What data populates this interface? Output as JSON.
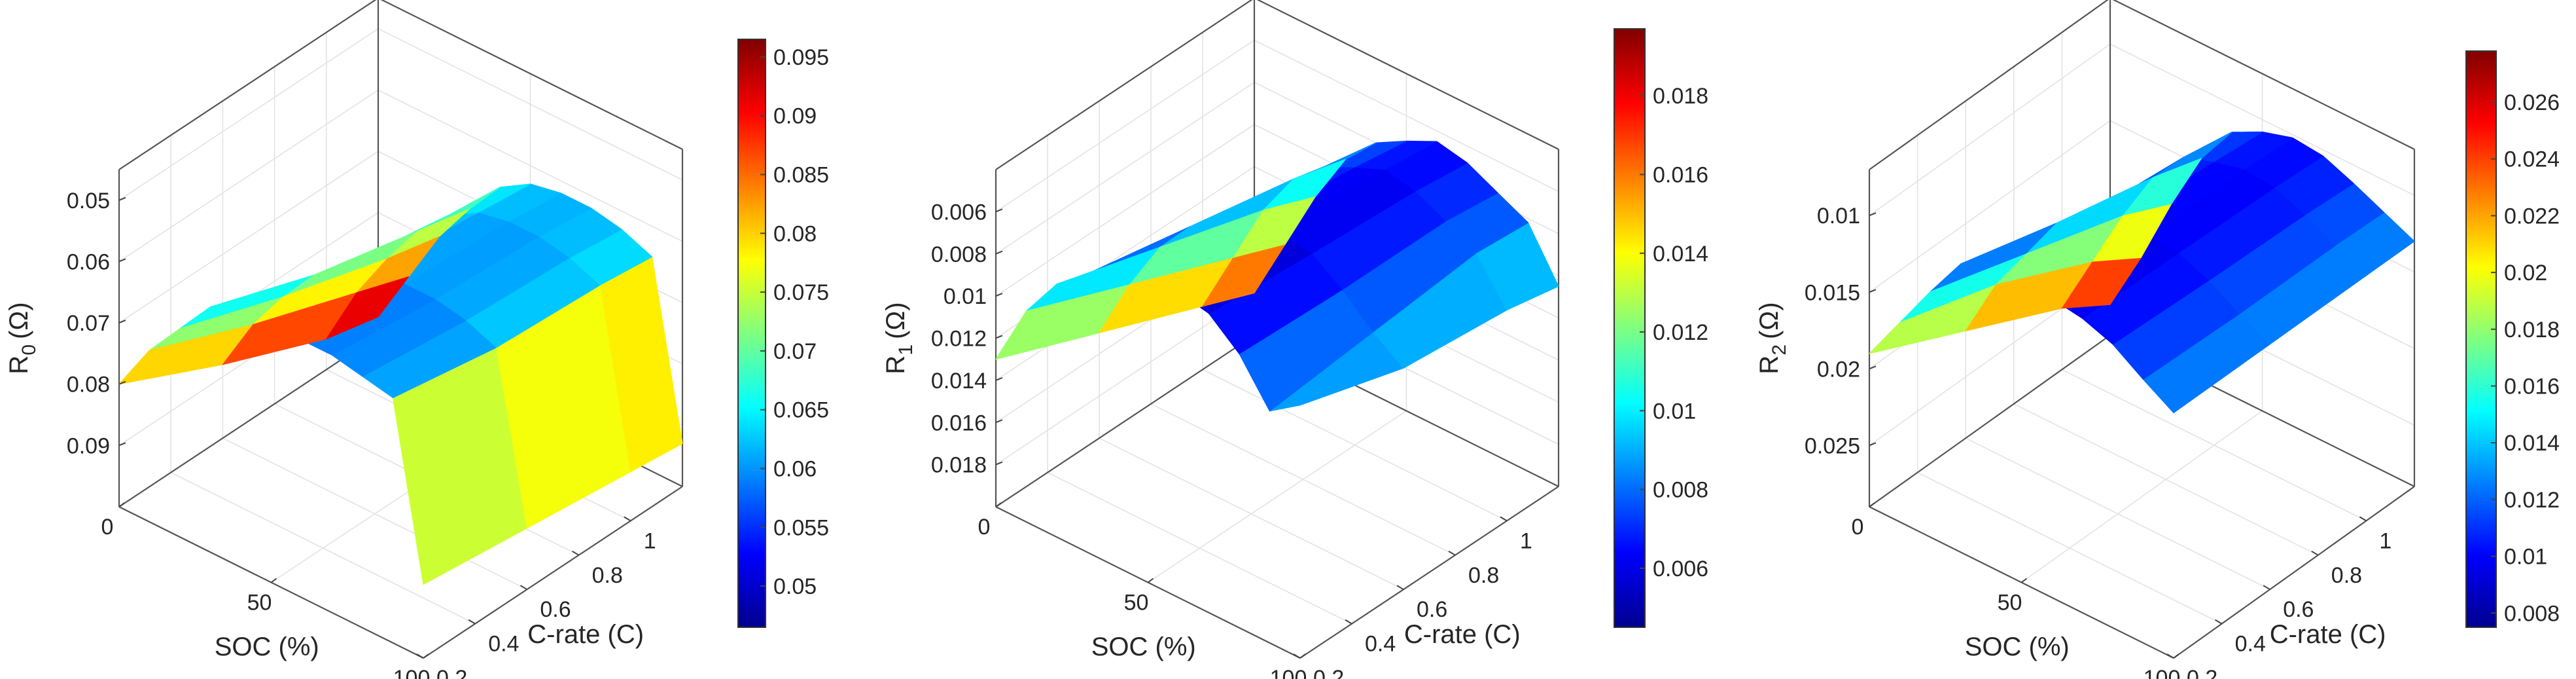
{
  "colors": {
    "colormap": "jet",
    "axis": "#262626",
    "background": "#ffffff"
  },
  "chart_data": [
    {
      "type": "surface",
      "panel": "R0",
      "zlabel_main": "R",
      "zlabel_sub": "0",
      "zlabel_unit": "(Ω)",
      "xlabel": "SOC (%)",
      "ylabel": "C-rate (C)",
      "z_direction": "reversed",
      "grid": true,
      "xlim": [
        0,
        100
      ],
      "ylim": [
        0.2,
        1.2
      ],
      "zlim": [
        0.045,
        0.1
      ],
      "x_ticks": [
        0,
        50,
        100
      ],
      "x_tick_labels": [
        "0",
        "50",
        "100"
      ],
      "y_ticks": [
        0.2,
        0.4,
        0.6,
        0.8,
        1.0
      ],
      "y_tick_labels": [
        "0.2",
        "0.4",
        "0.6",
        "0.8",
        "1"
      ],
      "z_ticks": [
        0.05,
        0.06,
        0.07,
        0.08,
        0.09
      ],
      "z_tick_labels": [
        "0.05",
        "0.06",
        "0.07",
        "0.08",
        "0.09"
      ],
      "soc": [
        0,
        10,
        20,
        30,
        40,
        50,
        60,
        70,
        80,
        90,
        100
      ],
      "c_rate": [
        0.2,
        0.6,
        1.0,
        1.2
      ],
      "z": [
        [
          0.08,
          0.072,
          0.066,
          0.06,
          0.058,
          0.058,
          0.058,
          0.058,
          0.059,
          0.06,
          0.088
        ],
        [
          0.088,
          0.079,
          0.072,
          0.066,
          0.062,
          0.06,
          0.06,
          0.06,
          0.061,
          0.063,
          0.09
        ],
        [
          0.095,
          0.085,
          0.077,
          0.07,
          0.065,
          0.062,
          0.061,
          0.061,
          0.062,
          0.064,
          0.092
        ],
        [
          0.097,
          0.088,
          0.079,
          0.072,
          0.066,
          0.063,
          0.062,
          0.062,
          0.063,
          0.065,
          0.093
        ]
      ],
      "colorbar": {
        "limits": [
          0.0465,
          0.0965
        ],
        "ticks": [
          0.05,
          0.055,
          0.06,
          0.065,
          0.07,
          0.075,
          0.08,
          0.085,
          0.09,
          0.095
        ],
        "tick_labels": [
          "0.05",
          "0.055",
          "0.06",
          "0.065",
          "0.07",
          "0.075",
          "0.08",
          "0.085",
          "0.09",
          "0.095"
        ]
      }
    },
    {
      "type": "surface",
      "panel": "R1",
      "zlabel_main": "R",
      "zlabel_sub": "1",
      "zlabel_unit": "(Ω)",
      "xlabel": "SOC (%)",
      "ylabel": "C-rate (C)",
      "z_direction": "reversed",
      "grid": true,
      "xlim": [
        0,
        100
      ],
      "ylim": [
        0.2,
        1.2
      ],
      "zlim": [
        0.004,
        0.02
      ],
      "x_ticks": [
        0,
        50,
        100
      ],
      "x_tick_labels": [
        "0",
        "50",
        "100"
      ],
      "y_ticks": [
        0.2,
        0.4,
        0.6,
        0.8,
        1.0
      ],
      "y_tick_labels": [
        "0.2",
        "0.4",
        "0.6",
        "0.8",
        "1"
      ],
      "z_ticks": [
        0.006,
        0.008,
        0.01,
        0.012,
        0.014,
        0.016,
        0.018
      ],
      "z_tick_labels": [
        "0.006",
        "0.008",
        "0.01",
        "0.012",
        "0.014",
        "0.016",
        "0.018"
      ],
      "soc": [
        0,
        10,
        20,
        30,
        40,
        50,
        60,
        70,
        80,
        90,
        100
      ],
      "c_rate": [
        0.2,
        0.6,
        1.0,
        1.2
      ],
      "z": [
        [
          0.013,
          0.01,
          0.008,
          0.0068,
          0.0062,
          0.0055,
          0.0055,
          0.0058,
          0.007,
          0.009,
          0.008
        ],
        [
          0.015,
          0.012,
          0.0095,
          0.0078,
          0.0068,
          0.0062,
          0.006,
          0.0062,
          0.0072,
          0.0085,
          0.0095
        ],
        [
          0.017,
          0.014,
          0.011,
          0.0088,
          0.0075,
          0.0068,
          0.0062,
          0.0065,
          0.0072,
          0.008,
          0.01
        ],
        [
          0.018,
          0.015,
          0.012,
          0.0095,
          0.008,
          0.0072,
          0.0065,
          0.0068,
          0.0075,
          0.0082,
          0.0105
        ]
      ],
      "colorbar": {
        "limits": [
          0.0045,
          0.0197
        ],
        "ticks": [
          0.006,
          0.008,
          0.01,
          0.012,
          0.014,
          0.016,
          0.018
        ],
        "tick_labels": [
          "0.006",
          "0.008",
          "0.01",
          "0.012",
          "0.014",
          "0.016",
          "0.018"
        ]
      }
    },
    {
      "type": "surface",
      "panel": "R2",
      "zlabel_main": "R",
      "zlabel_sub": "2",
      "zlabel_unit": "(Ω)",
      "xlabel": "SOC (%)",
      "ylabel": "C-rate (C)",
      "z_direction": "reversed",
      "grid": true,
      "xlim": [
        0,
        100
      ],
      "ylim": [
        0.2,
        1.2
      ],
      "zlim": [
        0.007,
        0.029
      ],
      "x_ticks": [
        0,
        50,
        100
      ],
      "x_tick_labels": [
        "0",
        "50",
        "100"
      ],
      "y_ticks": [
        0.2,
        0.4,
        0.6,
        0.8,
        1.0
      ],
      "y_tick_labels": [
        "0.2",
        "0.4",
        "0.6",
        "0.8",
        "1"
      ],
      "z_ticks": [
        0.01,
        0.015,
        0.02,
        0.025
      ],
      "z_tick_labels": [
        "0.01",
        "0.015",
        "0.02",
        "0.025"
      ],
      "soc": [
        0,
        10,
        20,
        30,
        40,
        50,
        60,
        70,
        80,
        90,
        100
      ],
      "c_rate": [
        0.2,
        0.6,
        1.0,
        1.2
      ],
      "z": [
        [
          0.019,
          0.016,
          0.013,
          0.0102,
          0.0098,
          0.0095,
          0.0095,
          0.0098,
          0.0105,
          0.0118,
          0.013
        ],
        [
          0.022,
          0.018,
          0.015,
          0.012,
          0.0105,
          0.01,
          0.0098,
          0.01,
          0.0108,
          0.012,
          0.013
        ],
        [
          0.025,
          0.021,
          0.017,
          0.0135,
          0.0112,
          0.0105,
          0.01,
          0.0102,
          0.011,
          0.012,
          0.013
        ],
        [
          0.027,
          0.023,
          0.0185,
          0.0145,
          0.0118,
          0.0108,
          0.0102,
          0.0104,
          0.0112,
          0.0121,
          0.013
        ]
      ],
      "colorbar": {
        "limits": [
          0.0075,
          0.0278
        ],
        "ticks": [
          0.008,
          0.01,
          0.012,
          0.014,
          0.016,
          0.018,
          0.02,
          0.022,
          0.024,
          0.026
        ],
        "tick_labels": [
          "0.008",
          "0.01",
          "0.012",
          "0.014",
          "0.016",
          "0.018",
          "0.02",
          "0.022",
          "0.024",
          "0.026"
        ]
      }
    }
  ]
}
